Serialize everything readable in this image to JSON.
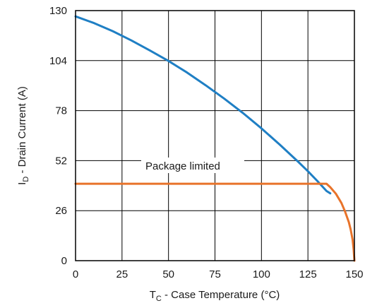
{
  "chart_data": {
    "type": "line",
    "title": "",
    "xlabel": {
      "prefix": "T",
      "sub": "C",
      "suffix": " - Case Temperature (°C)"
    },
    "ylabel": {
      "prefix": "I",
      "sub": "D",
      "suffix": " - Drain Current (A)"
    },
    "xlim": [
      0,
      150
    ],
    "ylim": [
      0,
      130
    ],
    "xticks": [
      0,
      25,
      50,
      75,
      100,
      125,
      150
    ],
    "yticks": [
      0,
      26,
      52,
      78,
      104,
      130
    ],
    "grid": true,
    "annotations": [
      {
        "text": "Package limited"
      }
    ],
    "series": [
      {
        "color": "#1f7fc4",
        "x": [
          0,
          10,
          20,
          30,
          40,
          50,
          60,
          70,
          80,
          90,
          100,
          110,
          120,
          125,
          130,
          135,
          137
        ],
        "y": [
          127,
          123.5,
          119.3,
          114.5,
          109.3,
          103.8,
          97.8,
          91.2,
          84.2,
          76.8,
          68.8,
          60.2,
          51.2,
          46.5,
          41.5,
          36.2,
          35
        ]
      },
      {
        "color": "#e8732a",
        "x": [
          0,
          135,
          137,
          140,
          143,
          145,
          147,
          148,
          149,
          149.6,
          150
        ],
        "y": [
          40,
          40,
          38.2,
          34.8,
          30,
          25.5,
          20,
          16.2,
          11,
          5.8,
          0
        ]
      }
    ]
  }
}
